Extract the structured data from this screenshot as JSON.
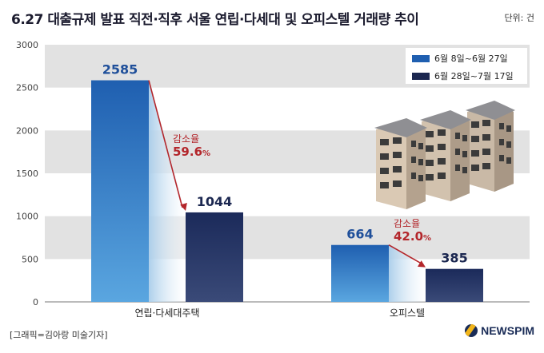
{
  "title": "6.27 대출규제 발표 직전·직후 서울 연립·다세대 및 오피스텔 거래량 추이",
  "unit": "단위: 건",
  "credit": "[그래픽=김아랑 미술기자]",
  "logo": "NEWSPIM",
  "colors": {
    "before": "#1f5fb0",
    "after": "#1b2750",
    "arrow": "#b3262b",
    "band": "#e2e2e2"
  },
  "chart_data": {
    "type": "bar",
    "categories": [
      "연립·다세대주택",
      "오피스텔"
    ],
    "series": [
      {
        "name": "6월 8일~6월 27일",
        "values": [
          2585,
          664
        ]
      },
      {
        "name": "6월 28일~7월 17일",
        "values": [
          1044,
          385
        ]
      }
    ],
    "ylim": [
      0,
      3000
    ],
    "yticks": [
      "0",
      "500",
      "1000",
      "1500",
      "2000",
      "2500",
      "3000"
    ],
    "ytick_values": [
      0,
      500,
      1000,
      1500,
      2000,
      2500,
      3000
    ],
    "value_labels": [
      [
        "2585",
        "1044"
      ],
      [
        "664",
        "385"
      ]
    ],
    "annotations": [
      {
        "label": "감소율",
        "value": "59.6",
        "suffix": "%"
      },
      {
        "label": "감소율",
        "value": "42.0",
        "suffix": "%"
      }
    ],
    "grid": "alternating bands",
    "legend": "top-right"
  }
}
